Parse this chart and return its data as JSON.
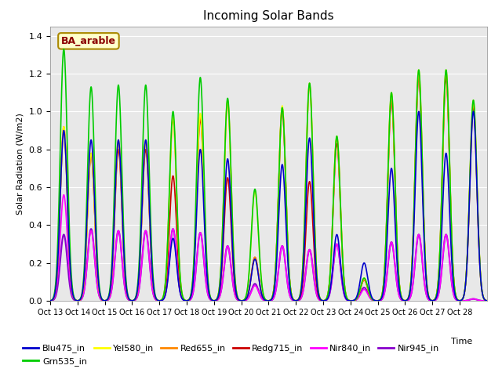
{
  "title": "Incoming Solar Bands",
  "xlabel": "Time",
  "ylabel": "Solar Radiation (W/m2)",
  "annotation": "BA_arable",
  "ylim": [
    0.0,
    1.45
  ],
  "background_color": "#e8e8e8",
  "figsize": [
    6.4,
    4.8
  ],
  "dpi": 100,
  "series": [
    {
      "name": "Blu475_in",
      "color": "#0000cc",
      "lw": 1.2,
      "zorder": 7
    },
    {
      "name": "Grn535_in",
      "color": "#00cc00",
      "lw": 1.2,
      "zorder": 6
    },
    {
      "name": "Yel580_in",
      "color": "#ffff00",
      "lw": 1.2,
      "zorder": 5
    },
    {
      "name": "Red655_in",
      "color": "#ff8800",
      "lw": 1.2,
      "zorder": 4
    },
    {
      "name": "Redg715_in",
      "color": "#cc0000",
      "lw": 1.2,
      "zorder": 3
    },
    {
      "name": "Nir840_in",
      "color": "#ff00ff",
      "lw": 1.2,
      "zorder": 2
    },
    {
      "name": "Nir945_in",
      "color": "#8800cc",
      "lw": 1.5,
      "zorder": 1
    }
  ],
  "n_days": 16,
  "pts_per_day": 200,
  "peaks": {
    "Blu475_in": [
      0.9,
      0.85,
      0.85,
      0.85,
      0.33,
      0.8,
      0.75,
      0.22,
      0.72,
      0.86,
      0.35,
      0.2,
      0.7,
      1.0,
      0.78,
      1.0
    ],
    "Grn535_in": [
      1.33,
      1.13,
      1.14,
      1.14,
      1.0,
      1.18,
      1.07,
      0.59,
      1.02,
      1.15,
      0.87,
      0.12,
      1.1,
      1.22,
      1.22,
      1.06
    ],
    "Yel580_in": [
      0.92,
      0.78,
      0.85,
      0.85,
      0.97,
      0.99,
      1.06,
      0.58,
      1.03,
      1.15,
      0.87,
      0.12,
      1.1,
      1.22,
      1.22,
      1.06
    ],
    "Red655_in": [
      0.92,
      0.78,
      0.84,
      0.84,
      0.96,
      0.98,
      1.05,
      0.23,
      1.02,
      1.14,
      0.86,
      0.11,
      1.08,
      1.2,
      1.2,
      1.04
    ],
    "Redg715_in": [
      0.9,
      0.77,
      0.8,
      0.8,
      0.66,
      0.96,
      0.65,
      0.23,
      1.01,
      0.63,
      0.83,
      0.11,
      1.06,
      1.18,
      1.18,
      1.02
    ],
    "Nir840_in": [
      0.56,
      0.37,
      0.37,
      0.37,
      0.38,
      0.36,
      0.29,
      0.08,
      0.29,
      0.27,
      0.3,
      0.06,
      0.31,
      0.35,
      0.35,
      0.01
    ],
    "Nir945_in": [
      0.35,
      0.38,
      0.37,
      0.37,
      0.38,
      0.36,
      0.29,
      0.09,
      0.29,
      0.27,
      0.3,
      0.07,
      0.31,
      0.35,
      0.35,
      0.01
    ]
  },
  "xtick_labels": [
    "Oct 13",
    "Oct 14",
    "Oct 15",
    "Oct 16",
    "Oct 17",
    "Oct 18",
    "Oct 19",
    "Oct 20",
    "Oct 21",
    "Oct 22",
    "Oct 23",
    "Oct 24",
    "Oct 25",
    "Oct 26",
    "Oct 27",
    "Oct 28"
  ],
  "yticks": [
    0.0,
    0.2,
    0.4,
    0.6,
    0.8,
    1.0,
    1.2,
    1.4
  ],
  "grid_color": "#ffffff",
  "legend_order": [
    "Blu475_in",
    "Grn535_in",
    "Yel580_in",
    "Red655_in",
    "Redg715_in",
    "Nir840_in",
    "Nir945_in"
  ]
}
